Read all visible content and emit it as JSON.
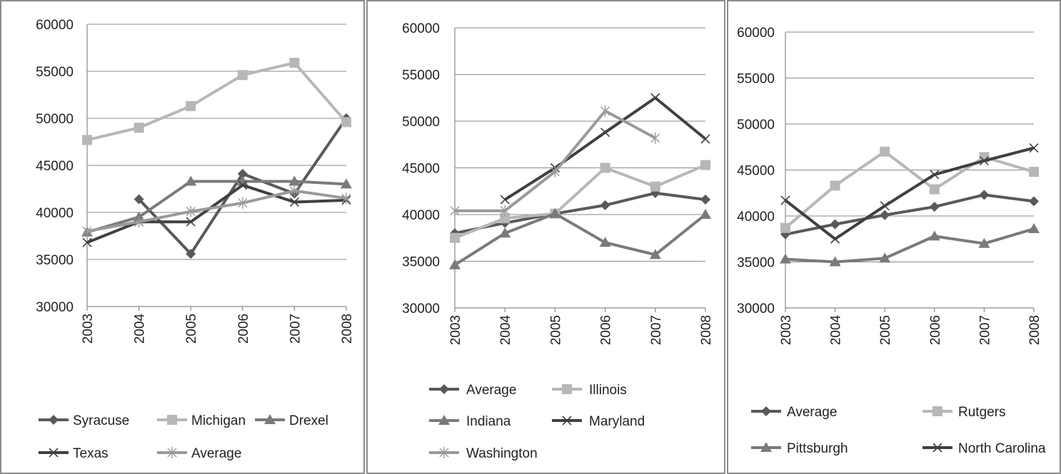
{
  "chart_data": [
    {
      "type": "line",
      "x": [
        "2003",
        "2004",
        "2005",
        "2006",
        "2007",
        "2008"
      ],
      "ylim": [
        30000,
        60000
      ],
      "yticks": [
        "30000",
        "35000",
        "40000",
        "45000",
        "50000",
        "55000",
        "60000"
      ],
      "grid": true,
      "legend_position": "bottom",
      "series": [
        {
          "name": "Syracuse",
          "marker": "diamond",
          "color": "#595959",
          "values": [
            null,
            41400,
            35600,
            44100,
            42000,
            50000
          ]
        },
        {
          "name": "Michigan",
          "marker": "square",
          "color": "#b7b7b7",
          "values": [
            47700,
            49000,
            51300,
            54600,
            55900,
            49600
          ]
        },
        {
          "name": "Drexel",
          "marker": "triangle",
          "color": "#7a7a7a",
          "values": [
            37900,
            39500,
            43300,
            43300,
            43300,
            43000
          ]
        },
        {
          "name": "Texas",
          "marker": "x",
          "color": "#404040",
          "values": [
            36800,
            39000,
            39000,
            42900,
            41100,
            41300
          ]
        },
        {
          "name": "Average",
          "marker": "star",
          "color": "#9a9a9a",
          "values": [
            38000,
            39000,
            40100,
            41000,
            42300,
            41500
          ]
        }
      ]
    },
    {
      "type": "line",
      "x": [
        "2003",
        "2004",
        "2005",
        "2006",
        "2007",
        "2008"
      ],
      "ylim": [
        30000,
        60000
      ],
      "yticks": [
        "30000",
        "35000",
        "40000",
        "45000",
        "50000",
        "55000",
        "60000"
      ],
      "grid": true,
      "legend_position": "bottom",
      "series": [
        {
          "name": "Average",
          "marker": "diamond",
          "color": "#595959",
          "values": [
            38000,
            39100,
            40100,
            41000,
            42300,
            41600
          ]
        },
        {
          "name": "Illinois",
          "marker": "square",
          "color": "#b7b7b7",
          "values": [
            37500,
            39600,
            40100,
            45000,
            43000,
            45300
          ]
        },
        {
          "name": "Indiana",
          "marker": "triangle",
          "color": "#7a7a7a",
          "values": [
            34600,
            38000,
            40100,
            37000,
            35700,
            40000
          ]
        },
        {
          "name": "Maryland",
          "marker": "x",
          "color": "#404040",
          "values": [
            null,
            41600,
            45000,
            48800,
            52500,
            48100
          ]
        },
        {
          "name": "Washington",
          "marker": "star",
          "color": "#9a9a9a",
          "values": [
            40400,
            40400,
            44600,
            51100,
            48200,
            null
          ]
        }
      ]
    },
    {
      "type": "line",
      "x": [
        "2003",
        "2004",
        "2005",
        "2006",
        "2007",
        "2008"
      ],
      "ylim": [
        30000,
        60000
      ],
      "yticks": [
        "30000",
        "35000",
        "40000",
        "45000",
        "50000",
        "55000",
        "60000"
      ],
      "grid": true,
      "legend_position": "bottom",
      "series": [
        {
          "name": "Average",
          "marker": "diamond",
          "color": "#595959",
          "values": [
            38000,
            39100,
            40100,
            41000,
            42300,
            41600
          ]
        },
        {
          "name": "Rutgers",
          "marker": "square",
          "color": "#b7b7b7",
          "values": [
            38700,
            43300,
            47000,
            42900,
            46400,
            44800
          ]
        },
        {
          "name": "Pittsburgh",
          "marker": "triangle",
          "color": "#7a7a7a",
          "values": [
            35300,
            35000,
            35400,
            37800,
            37000,
            38600
          ]
        },
        {
          "name": "North Carolina",
          "marker": "x",
          "color": "#404040",
          "values": [
            41700,
            37500,
            41100,
            44500,
            46000,
            47400
          ]
        }
      ]
    }
  ]
}
